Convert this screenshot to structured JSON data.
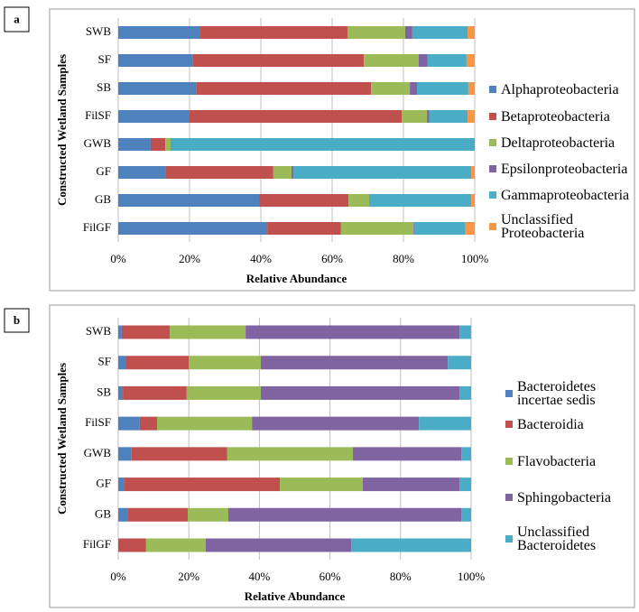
{
  "chart_data": [
    {
      "type": "stacked-barh",
      "panel_label": "a",
      "ylabel": "Constructed Wetland Samples",
      "xlabel": "Relative Abundance",
      "categories": [
        "SWB",
        "SF",
        "SB",
        "FilSF",
        "GWB",
        "GF",
        "GB",
        "FilGF"
      ],
      "xlim": [
        0,
        100
      ],
      "xticks": [
        {
          "value": 0,
          "label": "0%"
        },
        {
          "value": 20,
          "label": "20%"
        },
        {
          "value": 40,
          "label": "40%"
        },
        {
          "value": 60,
          "label": "60%"
        },
        {
          "value": 80,
          "label": "80%"
        },
        {
          "value": 100,
          "label": "100%"
        }
      ],
      "grid": true,
      "series": [
        {
          "name": "Alphaproteobacteria",
          "color": "#4f81bd",
          "values": [
            22.8,
            20.8,
            22.0,
            20.0,
            9.1,
            13.2,
            39.5,
            41.8
          ]
        },
        {
          "name": "Betaproteobacteria",
          "color": "#c0504d",
          "values": [
            41.5,
            48.1,
            48.9,
            59.5,
            4.1,
            30.3,
            25.1,
            20.7
          ]
        },
        {
          "name": "Deltaproteobacteria",
          "color": "#9bbb59",
          "values": [
            16.2,
            15.4,
            10.9,
            7.1,
            1.5,
            5.1,
            5.8,
            20.3
          ]
        },
        {
          "name": "Epsilonproteobacteria",
          "color": "#8064a2",
          "values": [
            2.0,
            2.5,
            2.0,
            0.7,
            0.2,
            0.5,
            0.2,
            0.2
          ]
        },
        {
          "name": "Gammaproteobacteria",
          "color": "#4bacc6",
          "values": [
            15.5,
            10.9,
            14.4,
            10.7,
            85.1,
            49.9,
            28.4,
            14.4
          ]
        },
        {
          "name": "Unclassified Proteobacteria",
          "color": "#f79646",
          "values": [
            2.0,
            2.3,
            1.8,
            2.0,
            0,
            1.0,
            1.0,
            2.6
          ]
        }
      ]
    },
    {
      "type": "stacked-barh",
      "panel_label": "b",
      "ylabel": "Constructed Wetland Samples",
      "xlabel": "Relative Abundance",
      "categories": [
        "SWB",
        "SF",
        "SB",
        "FilSF",
        "GWB",
        "GF",
        "GB",
        "FilGF"
      ],
      "xlim": [
        0,
        100
      ],
      "xticks": [
        {
          "value": 0,
          "label": "0%"
        },
        {
          "value": 20,
          "label": "20%"
        },
        {
          "value": 40,
          "label": "40%"
        },
        {
          "value": 60,
          "label": "60%"
        },
        {
          "value": 80,
          "label": "80%"
        },
        {
          "value": 100,
          "label": "100%"
        }
      ],
      "grid": true,
      "series": [
        {
          "name": "Bacteroidetes incertae sedis",
          "color": "#4f81bd",
          "values": [
            1.0,
            2.3,
            1.3,
            6.1,
            3.8,
            1.8,
            2.8,
            0
          ]
        },
        {
          "name": "Bacteroidia",
          "color": "#c0504d",
          "values": [
            13.6,
            17.7,
            18.1,
            4.9,
            27.1,
            44.0,
            16.9,
            7.9
          ]
        },
        {
          "name": "Flavobacteria",
          "color": "#9bbb59",
          "values": [
            21.5,
            20.4,
            21.0,
            26.9,
            35.6,
            23.5,
            11.5,
            16.9
          ]
        },
        {
          "name": "Sphingobacteria",
          "color": "#8064a2",
          "values": [
            60.6,
            53.0,
            56.3,
            47.3,
            30.7,
            27.4,
            66.0,
            41.2
          ]
        },
        {
          "name": "Unclassified Bacteroidetes",
          "color": "#4bacc6",
          "values": [
            3.3,
            6.6,
            3.3,
            14.8,
            2.8,
            3.3,
            2.8,
            34.0
          ]
        }
      ]
    }
  ]
}
